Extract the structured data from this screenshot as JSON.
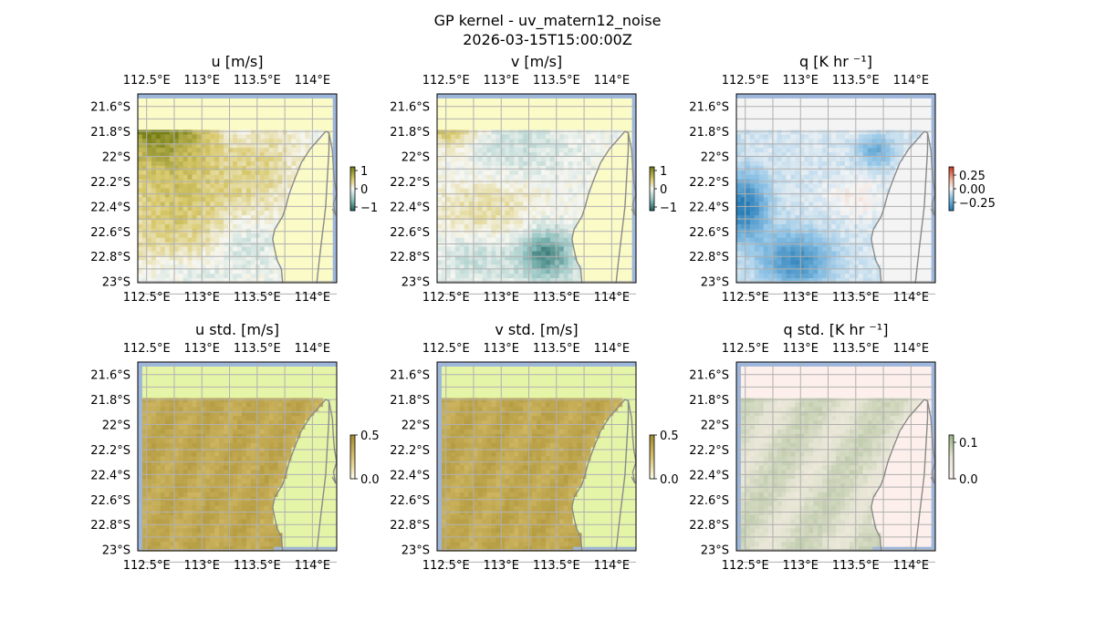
{
  "figure": {
    "title": "GP kernel - uv_matern12_noise",
    "subtitle": "2026-03-15T15:00:00Z"
  },
  "colors": {
    "ocean": "#9db6dc",
    "land": "#fbfbc8",
    "land_std": "#e4f5a8",
    "grid": "#b0b0b0",
    "coast": "#8a8a8a"
  },
  "chart_data": [
    {
      "type": "heatmap",
      "title": "u [m/s]",
      "x_ticks": [
        "112.5°E",
        "113°E",
        "113.5°E",
        "114°E"
      ],
      "y_ticks": [
        "21.6°S",
        "21.8°S",
        "22°S",
        "22.2°S",
        "22.4°S",
        "22.6°S",
        "22.8°S",
        "23°S"
      ],
      "colorbar": {
        "ticks": [
          "1",
          "0",
          "−1"
        ],
        "values": [
          1,
          0,
          -1
        ],
        "vmin": -1.2,
        "vmax": 1.2,
        "colormap": "olive-white-teal"
      },
      "field": "u"
    },
    {
      "type": "heatmap",
      "title": "v [m/s]",
      "x_ticks": [
        "112.5°E",
        "113°E",
        "113.5°E",
        "114°E"
      ],
      "y_ticks": [
        "21.6°S",
        "21.8°S",
        "22°S",
        "22.2°S",
        "22.4°S",
        "22.6°S",
        "22.8°S",
        "23°S"
      ],
      "colorbar": {
        "ticks": [
          "1",
          "0",
          "−1"
        ],
        "values": [
          1,
          0,
          -1
        ],
        "vmin": -1.2,
        "vmax": 1.2,
        "colormap": "olive-white-teal"
      },
      "field": "v"
    },
    {
      "type": "heatmap",
      "title": "q [K hr ⁻¹]",
      "x_ticks": [
        "112.5°E",
        "113°E",
        "113.5°E",
        "114°E"
      ],
      "y_ticks": [
        "21.6°S",
        "21.8°S",
        "22°S",
        "22.2°S",
        "22.4°S",
        "22.6°S",
        "22.8°S",
        "23°S"
      ],
      "colorbar": {
        "ticks": [
          "0.25",
          "0.00",
          "−0.25"
        ],
        "values": [
          0.25,
          0,
          -0.25
        ],
        "vmin": -0.4,
        "vmax": 0.4,
        "colormap": "red-white-blue"
      },
      "field": "q"
    },
    {
      "type": "heatmap",
      "title": "u std. [m/s]",
      "x_ticks": [
        "112.5°E",
        "113°E",
        "113.5°E",
        "114°E"
      ],
      "y_ticks": [
        "21.6°S",
        "21.8°S",
        "22°S",
        "22.2°S",
        "22.4°S",
        "22.6°S",
        "22.8°S",
        "23°S"
      ],
      "colorbar": {
        "ticks": [
          "0.5",
          "0.0"
        ],
        "values": [
          0.5,
          0
        ],
        "vmin": 0,
        "vmax": 0.5,
        "colormap": "olive-std"
      },
      "field": "ustd"
    },
    {
      "type": "heatmap",
      "title": "v std. [m/s]",
      "x_ticks": [
        "112.5°E",
        "113°E",
        "113.5°E",
        "114°E"
      ],
      "y_ticks": [
        "21.6°S",
        "21.8°S",
        "22°S",
        "22.2°S",
        "22.4°S",
        "22.6°S",
        "22.8°S",
        "23°S"
      ],
      "colorbar": {
        "ticks": [
          "0.5",
          "0.0"
        ],
        "values": [
          0.5,
          0
        ],
        "vmin": 0,
        "vmax": 0.5,
        "colormap": "olive-std"
      },
      "field": "vstd"
    },
    {
      "type": "heatmap",
      "title": "q std. [K hr ⁻¹]",
      "x_ticks": [
        "112.5°E",
        "113°E",
        "113.5°E",
        "114°E"
      ],
      "y_ticks": [
        "21.6°S",
        "21.8°S",
        "22°S",
        "22.2°S",
        "22.4°S",
        "22.6°S",
        "22.8°S",
        "23°S"
      ],
      "colorbar": {
        "ticks": [
          "0.1",
          "0.0"
        ],
        "values": [
          0.1,
          0
        ],
        "vmin": 0,
        "vmax": 0.12,
        "colormap": "pink-green"
      },
      "field": "qstd"
    }
  ]
}
